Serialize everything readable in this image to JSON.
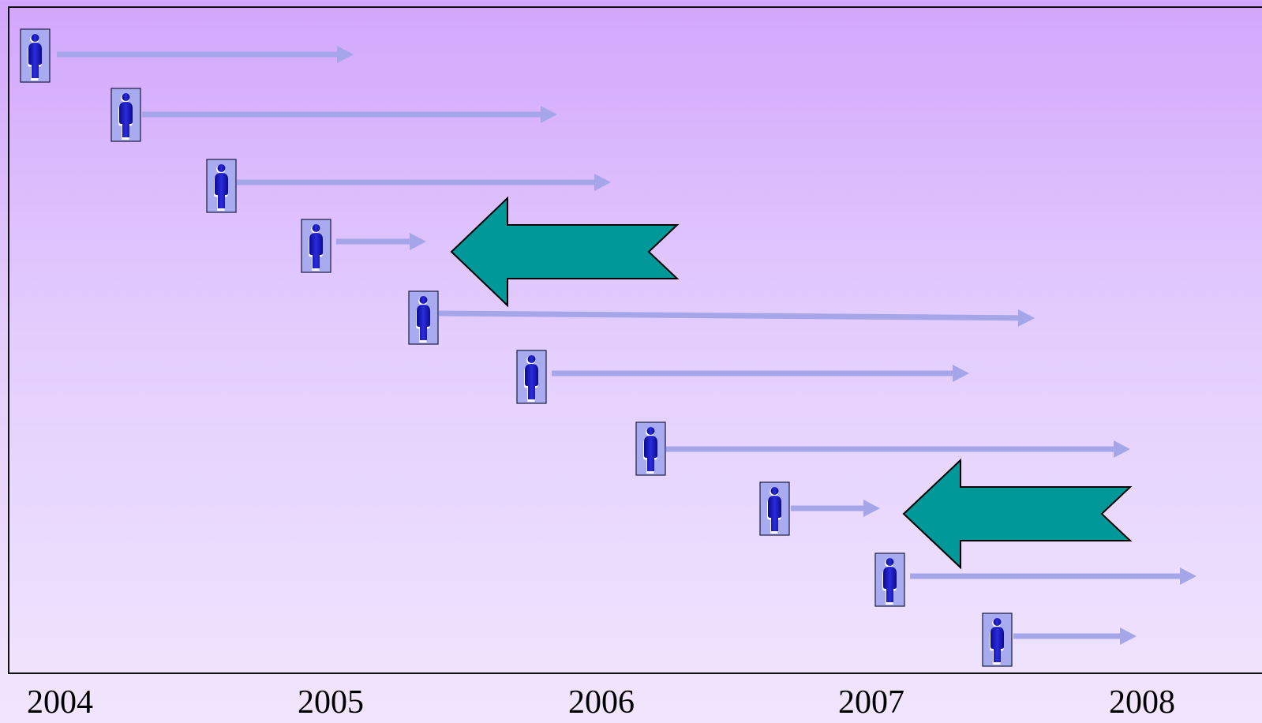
{
  "axis": {
    "years": [
      "2004",
      "2005",
      "2006",
      "2007",
      "2008"
    ]
  },
  "people": [
    {
      "icon": "person-icon",
      "arrow": "right"
    },
    {
      "icon": "person-icon",
      "arrow": "right"
    },
    {
      "icon": "person-icon",
      "arrow": "right"
    },
    {
      "icon": "person-icon",
      "arrow": "right"
    },
    {
      "icon": "person-icon",
      "arrow": "right"
    },
    {
      "icon": "person-icon",
      "arrow": "right"
    },
    {
      "icon": "person-icon",
      "arrow": "right"
    },
    {
      "icon": "person-icon",
      "arrow": "right"
    },
    {
      "icon": "person-icon",
      "arrow": "right"
    },
    {
      "icon": "person-icon",
      "arrow": "right"
    }
  ],
  "big_arrows": [
    {
      "direction": "left"
    },
    {
      "direction": "left"
    }
  ],
  "colors": {
    "background_top": "#d2a6fc",
    "background_bottom": "#f1e6fd",
    "timeline_arrow": "#a5a6ea",
    "person_tile": "#a8abf0",
    "person_figure": "#1e1ec8",
    "big_arrow": "#009898"
  }
}
